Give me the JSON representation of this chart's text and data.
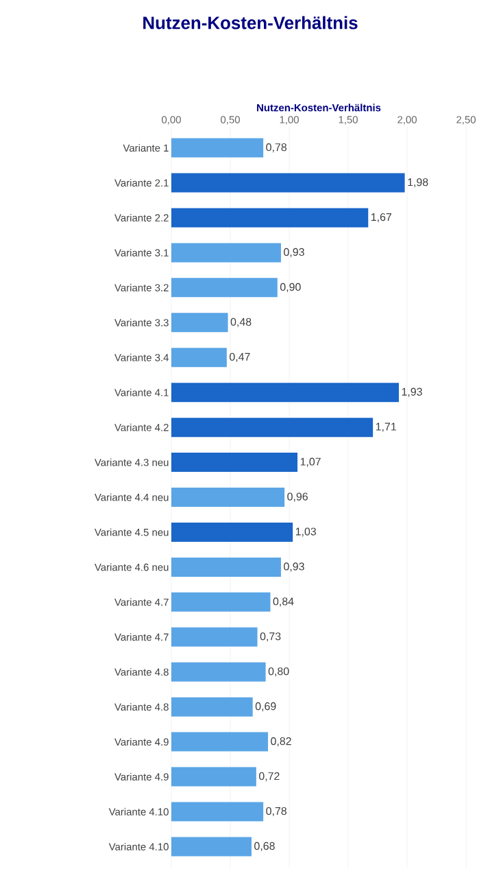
{
  "chart_data": {
    "type": "bar",
    "orientation": "horizontal",
    "title": "Nutzen-Kosten-Verhältnis",
    "xlabel": "Nutzen-Kosten-Verhältnis",
    "categories": [
      "Variante 1",
      "Variante 2.1",
      "Variante 2.2",
      "Variante 3.1",
      "Variante 3.2",
      "Variante 3.3",
      "Variante 3.4",
      "Variante 4.1",
      "Variante 4.2",
      "Variante 4.3 neu",
      "Variante 4.4 neu",
      "Variante 4.5 neu",
      "Variante 4.6 neu",
      "Variante 4.7",
      "Variante 4.7",
      "Variante 4.8",
      "Variante 4.8",
      "Variante 4.9",
      "Variante 4.9",
      "Variante 4.10",
      "Variante 4.10"
    ],
    "values": [
      0.78,
      1.98,
      1.67,
      0.93,
      0.9,
      0.48,
      0.47,
      1.93,
      1.71,
      1.07,
      0.96,
      1.03,
      0.93,
      0.84,
      0.73,
      0.8,
      0.69,
      0.82,
      0.72,
      0.78,
      0.68
    ],
    "value_labels": [
      "0,78",
      "1,98",
      "1,67",
      "0,93",
      "0,90",
      "0,48",
      "0,47",
      "1,93",
      "1,71",
      "1,07",
      "0,96",
      "1,03",
      "0,93",
      "0,84",
      "0,73",
      "0,80",
      "0,69",
      "0,82",
      "0,72",
      "0,78",
      "0,68"
    ],
    "colors": [
      "#5aa5e6",
      "#1a66c9",
      "#1a66c9",
      "#5aa5e6",
      "#5aa5e6",
      "#5aa5e6",
      "#5aa5e6",
      "#1a66c9",
      "#1a66c9",
      "#1a66c9",
      "#5aa5e6",
      "#1a66c9",
      "#5aa5e6",
      "#5aa5e6",
      "#5aa5e6",
      "#5aa5e6",
      "#5aa5e6",
      "#5aa5e6",
      "#5aa5e6",
      "#5aa5e6",
      "#5aa5e6"
    ],
    "xlim": [
      0,
      2.5
    ],
    "xticks": [
      {
        "value": 0,
        "label": "0,00"
      },
      {
        "value": 0.5,
        "label": "0,50"
      },
      {
        "value": 1,
        "label": "1,00"
      },
      {
        "value": 1.5,
        "label": "1,50"
      },
      {
        "value": 2,
        "label": "2,00"
      },
      {
        "value": 2.5,
        "label": "2,50"
      }
    ],
    "grid": "x"
  }
}
